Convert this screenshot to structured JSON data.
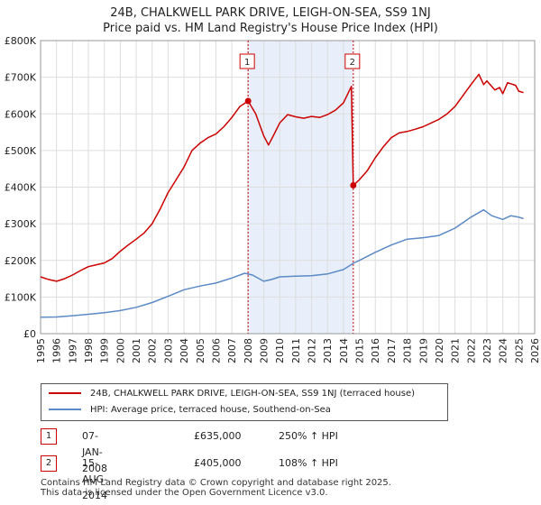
{
  "title_line1": "24B, CHALKWELL PARK DRIVE, LEIGH-ON-SEA, SS9 1NJ",
  "title_line2": "Price paid vs. HM Land Registry's House Price Index (HPI)",
  "chart_data": {
    "type": "line",
    "x_ticks": [
      1995,
      1996,
      1997,
      1998,
      1999,
      2000,
      2001,
      2002,
      2003,
      2004,
      2005,
      2006,
      2007,
      2008,
      2009,
      2010,
      2011,
      2012,
      2013,
      2014,
      2015,
      2016,
      2017,
      2018,
      2019,
      2020,
      2021,
      2022,
      2023,
      2024,
      2025,
      2026
    ],
    "y_ticks": [
      0,
      100000,
      200000,
      300000,
      400000,
      500000,
      600000,
      700000,
      800000
    ],
    "y_tick_labels": [
      "£0",
      "£100K",
      "£200K",
      "£300K",
      "£400K",
      "£500K",
      "£600K",
      "£700K",
      "£800K"
    ],
    "xlim": [
      1995,
      2026
    ],
    "ylim": [
      0,
      800000
    ],
    "grid": true,
    "shaded_region": [
      2008.02,
      2014.62
    ],
    "series": [
      {
        "name": "24B, CHALKWELL PARK DRIVE, LEIGH-ON-SEA, SS9 1NJ (terraced house)",
        "color": "#cc0000",
        "points": [
          [
            1995.0,
            155000
          ],
          [
            1995.5,
            148000
          ],
          [
            1996.0,
            143000
          ],
          [
            1996.5,
            150000
          ],
          [
            1997.0,
            160000
          ],
          [
            1997.5,
            172000
          ],
          [
            1998.0,
            183000
          ],
          [
            1998.5,
            188000
          ],
          [
            1999.0,
            193000
          ],
          [
            1999.5,
            205000
          ],
          [
            2000.0,
            225000
          ],
          [
            2000.5,
            242000
          ],
          [
            2001.0,
            258000
          ],
          [
            2001.5,
            275000
          ],
          [
            2002.0,
            300000
          ],
          [
            2002.5,
            340000
          ],
          [
            2003.0,
            385000
          ],
          [
            2003.5,
            420000
          ],
          [
            2004.0,
            455000
          ],
          [
            2004.5,
            500000
          ],
          [
            2005.0,
            520000
          ],
          [
            2005.5,
            535000
          ],
          [
            2006.0,
            545000
          ],
          [
            2006.5,
            565000
          ],
          [
            2007.0,
            590000
          ],
          [
            2007.5,
            620000
          ],
          [
            2008.02,
            635000
          ],
          [
            2008.5,
            600000
          ],
          [
            2009.0,
            540000
          ],
          [
            2009.3,
            515000
          ],
          [
            2009.6,
            540000
          ],
          [
            2010.0,
            575000
          ],
          [
            2010.5,
            598000
          ],
          [
            2011.0,
            592000
          ],
          [
            2011.5,
            588000
          ],
          [
            2012.0,
            593000
          ],
          [
            2012.5,
            590000
          ],
          [
            2013.0,
            598000
          ],
          [
            2013.5,
            610000
          ],
          [
            2014.0,
            630000
          ],
          [
            2014.5,
            675000
          ],
          [
            2014.62,
            405000
          ],
          [
            2015.0,
            420000
          ],
          [
            2015.5,
            445000
          ],
          [
            2016.0,
            480000
          ],
          [
            2016.5,
            510000
          ],
          [
            2017.0,
            535000
          ],
          [
            2017.5,
            548000
          ],
          [
            2018.0,
            552000
          ],
          [
            2018.5,
            558000
          ],
          [
            2019.0,
            565000
          ],
          [
            2019.5,
            575000
          ],
          [
            2020.0,
            585000
          ],
          [
            2020.5,
            600000
          ],
          [
            2021.0,
            620000
          ],
          [
            2021.5,
            650000
          ],
          [
            2022.0,
            680000
          ],
          [
            2022.5,
            708000
          ],
          [
            2022.8,
            680000
          ],
          [
            2023.0,
            690000
          ],
          [
            2023.5,
            665000
          ],
          [
            2023.8,
            672000
          ],
          [
            2024.0,
            655000
          ],
          [
            2024.3,
            685000
          ],
          [
            2024.8,
            678000
          ],
          [
            2025.0,
            662000
          ],
          [
            2025.3,
            658000
          ]
        ]
      },
      {
        "name": "HPI: Average price, terraced house, Southend-on-Sea",
        "color": "#5b8ac6",
        "points": [
          [
            1995.0,
            45000
          ],
          [
            1996.0,
            45500
          ],
          [
            1997.0,
            49000
          ],
          [
            1998.0,
            53000
          ],
          [
            1999.0,
            57000
          ],
          [
            2000.0,
            63000
          ],
          [
            2001.0,
            72000
          ],
          [
            2002.0,
            85000
          ],
          [
            2003.0,
            102000
          ],
          [
            2004.0,
            120000
          ],
          [
            2005.0,
            130000
          ],
          [
            2006.0,
            138000
          ],
          [
            2007.0,
            152000
          ],
          [
            2007.8,
            165000
          ],
          [
            2008.3,
            160000
          ],
          [
            2009.0,
            143000
          ],
          [
            2009.5,
            148000
          ],
          [
            2010.0,
            155000
          ],
          [
            2011.0,
            157000
          ],
          [
            2012.0,
            158000
          ],
          [
            2013.0,
            163000
          ],
          [
            2014.0,
            175000
          ],
          [
            2014.62,
            192000
          ],
          [
            2015.0,
            200000
          ],
          [
            2016.0,
            222000
          ],
          [
            2017.0,
            242000
          ],
          [
            2018.0,
            258000
          ],
          [
            2019.0,
            262000
          ],
          [
            2020.0,
            268000
          ],
          [
            2021.0,
            288000
          ],
          [
            2022.0,
            318000
          ],
          [
            2022.8,
            338000
          ],
          [
            2023.3,
            322000
          ],
          [
            2024.0,
            312000
          ],
          [
            2024.5,
            322000
          ],
          [
            2025.0,
            318000
          ],
          [
            2025.3,
            314000
          ]
        ]
      }
    ],
    "sales": [
      {
        "num": "1",
        "x": 2008.02,
        "y": 635000
      },
      {
        "num": "2",
        "x": 2014.62,
        "y": 405000
      }
    ]
  },
  "legend": {
    "entry1": "24B, CHALKWELL PARK DRIVE, LEIGH-ON-SEA, SS9 1NJ (terraced house)",
    "entry2": "HPI: Average price, terraced house, Southend-on-Sea"
  },
  "sales_table": [
    {
      "num": "1",
      "date": "07-JAN-2008",
      "price": "£635,000",
      "hpi": "250% ↑ HPI"
    },
    {
      "num": "2",
      "date": "15-AUG-2014",
      "price": "£405,000",
      "hpi": "108% ↑ HPI"
    }
  ],
  "colors": {
    "price": "#cc0000",
    "hpi": "#5b8ac6",
    "shade": "#e8eefa",
    "grid": "#dddddd"
  },
  "footer_line1": "Contains HM Land Registry data © Crown copyright and database right 2025.",
  "footer_line2": "This data is licensed under the Open Government Licence v3.0."
}
